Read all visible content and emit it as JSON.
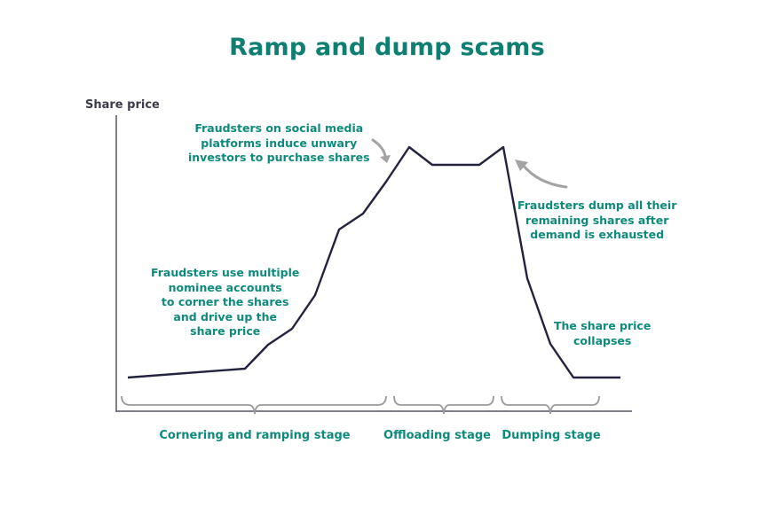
{
  "title": "Ramp and dump scams",
  "y_axis_label": "Share price",
  "annotations": {
    "social_media": "Fraudsters on social media\nplatforms induce unwary\ninvestors to purchase shares",
    "dump": "Fraudsters dump all their\nremaining shares after\ndemand is exhausted",
    "nominee": "Fraudsters use multiple\nnominee accounts\nto corner the shares\nand drive up the\nshare price",
    "collapse": "The share price\ncollapses"
  },
  "stages": [
    {
      "label": "Cornering and ramping stage"
    },
    {
      "label": "Offloading stage"
    },
    {
      "label": "Dumping stage"
    }
  ],
  "colors": {
    "title": "#0e7f72",
    "annotation": "#0e8a7c",
    "line": "#23233f",
    "axis": "#55556a",
    "bracket": "#9a9a9a",
    "arrow": "#a3a3a3"
  }
}
